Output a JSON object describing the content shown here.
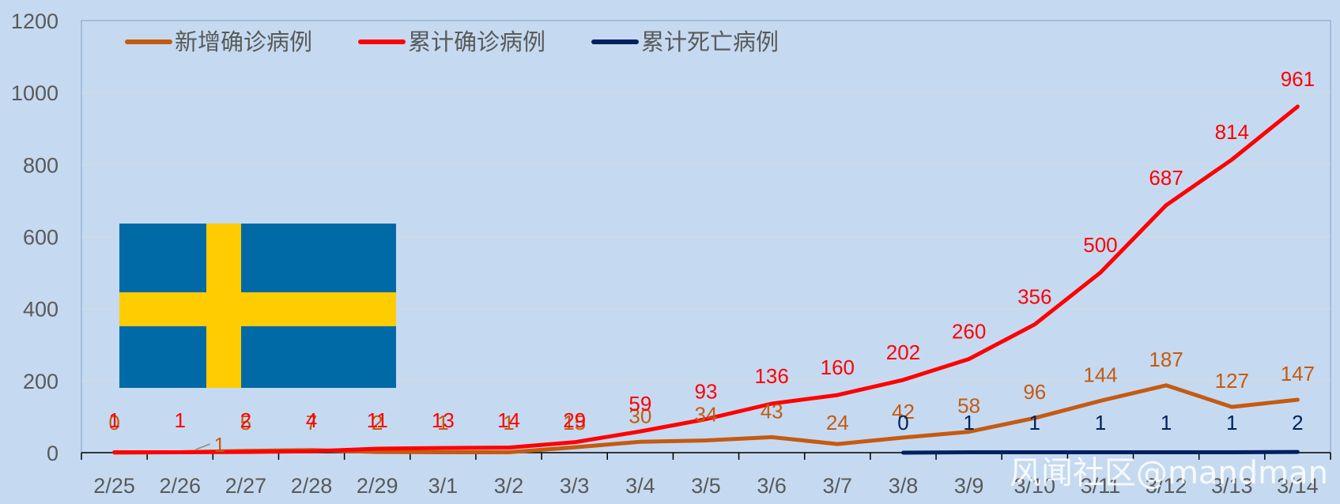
{
  "chart_data": {
    "type": "line",
    "categories": [
      "2/25",
      "2/26",
      "2/27",
      "2/28",
      "2/29",
      "3/1",
      "3/2",
      "3/3",
      "3/4",
      "3/5",
      "3/6",
      "3/7",
      "3/8",
      "3/9",
      "3/10",
      "3/11",
      "3/12",
      "3/13",
      "3/14"
    ],
    "series": [
      {
        "name": "新增确诊病例",
        "color": "#c55a11",
        "values": [
          0,
          1,
          5,
          7,
          2,
          1,
          1,
          15,
          30,
          34,
          43,
          24,
          42,
          58,
          96,
          144,
          187,
          127,
          147
        ]
      },
      {
        "name": "累计确诊病例",
        "color": "#ff0000",
        "values": [
          1,
          1,
          2,
          4,
          11,
          13,
          14,
          29,
          59,
          93,
          136,
          160,
          202,
          260,
          356,
          500,
          687,
          814,
          961
        ]
      },
      {
        "name": "累计死亡病例",
        "color": "#002060",
        "values": [
          null,
          null,
          null,
          null,
          null,
          null,
          null,
          null,
          null,
          null,
          null,
          null,
          0,
          1,
          1,
          1,
          1,
          1,
          2
        ]
      }
    ],
    "ylim": [
      0,
      1200
    ],
    "yticks": [
      0,
      200,
      400,
      600,
      800,
      1000,
      1200
    ],
    "grid": true,
    "legend_position": "top-left",
    "flag_colors": {
      "blue": "#006aa7",
      "yellow": "#fecc00"
    },
    "watermark": "风闻社区@mandman"
  }
}
